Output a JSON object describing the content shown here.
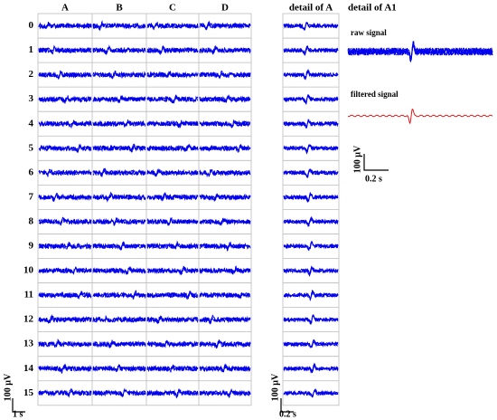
{
  "columns": [
    "A",
    "B",
    "C",
    "D"
  ],
  "detail_title": "detail of A",
  "detail_a1_title": "detail of A1",
  "rows": [
    "0",
    "1",
    "2",
    "3",
    "4",
    "5",
    "6",
    "7",
    "8",
    "9",
    "10",
    "11",
    "12",
    "13",
    "14",
    "15"
  ],
  "traces": {
    "raw": "raw signal",
    "filtered": "filtered signal"
  },
  "scale_bars": {
    "main": {
      "y": "100 µV",
      "x": "1 s"
    },
    "detail": {
      "y": "100 µV",
      "x": "0.2 s"
    },
    "a1": {
      "y": "100 µV",
      "x": "0.2 s"
    }
  }
}
